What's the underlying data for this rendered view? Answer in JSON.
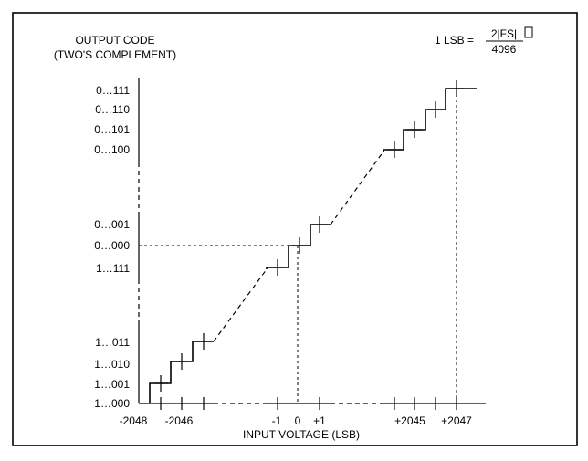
{
  "ylabel": [
    "OUTPUT CODE",
    "(TWO'S COMPLEMENT)"
  ],
  "xlabel": "INPUT VOLTAGE (LSB)",
  "formula": {
    "lhs": "1 LSB =",
    "numerator": "2|FS|",
    "denominator": "4096"
  },
  "y_codes_top": [
    "0…111",
    "0…110",
    "0…101",
    "0…100"
  ],
  "y_codes_mid": [
    "0…001",
    "0…000",
    "1…111"
  ],
  "y_codes_bottom": [
    "1…011",
    "1…010",
    "1…001",
    "1…000"
  ],
  "x_labels": [
    "-2048",
    "-2046",
    "-1",
    "0",
    "+1",
    "+2045",
    "+2047"
  ]
}
